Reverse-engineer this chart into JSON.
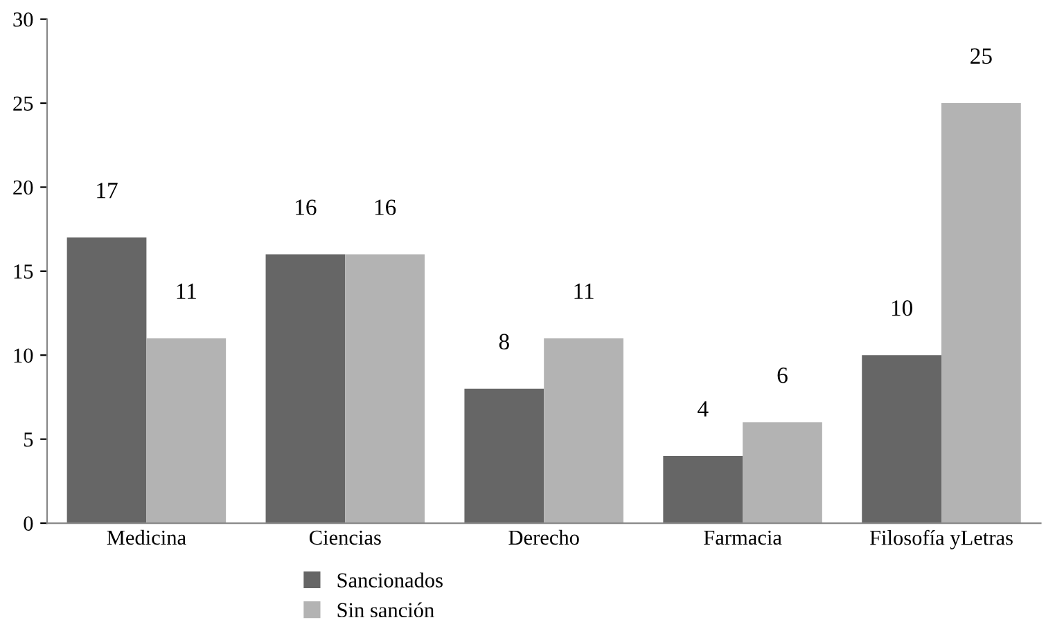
{
  "chart_data": {
    "type": "bar",
    "categories": [
      "Medicina",
      "Ciencias",
      "Derecho",
      "Farmacia",
      "Filosofía yLetras"
    ],
    "series": [
      {
        "name": "Sancionados",
        "color": "#666666",
        "values": [
          17,
          16,
          8,
          4,
          10
        ]
      },
      {
        "name": "Sin sanción",
        "color": "#b3b3b3",
        "values": [
          11,
          16,
          11,
          6,
          25
        ]
      }
    ],
    "ylim": [
      0,
      30
    ],
    "yticks": [
      0,
      5,
      10,
      15,
      20,
      25,
      30
    ],
    "grid": false,
    "legend": "bottom",
    "data_labels": true
  }
}
